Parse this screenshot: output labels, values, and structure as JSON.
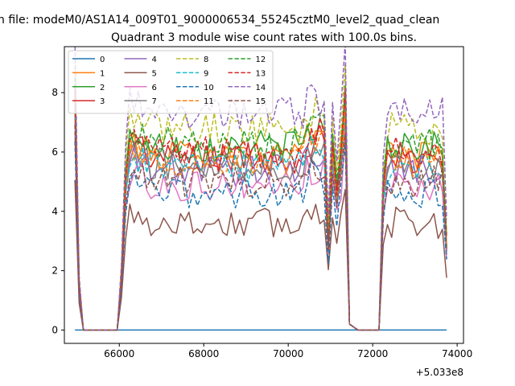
{
  "figure": {
    "suptitle": "n file: modeM0/AS1A14_009T01_9000006534_55245cztM0_level2_quad_clean",
    "title": "Quadrant 3 module wise count rates with 100.0s bins."
  },
  "chart_data": {
    "type": "line",
    "title": "Quadrant 3 module wise count rates with 100.0s bins.",
    "xlabel": "",
    "ylabel": "",
    "x_offset_label": "+5.033e8",
    "xlim": [
      64700,
      74150
    ],
    "ylim": [
      -0.45,
      9.55
    ],
    "x_ticks": [
      66000,
      68000,
      70000,
      72000,
      74000
    ],
    "x_tick_labels": [
      "66000",
      "68000",
      "70000",
      "72000",
      "74000"
    ],
    "y_ticks": [
      0,
      2,
      4,
      6,
      8
    ],
    "y_tick_labels": [
      "0",
      "2",
      "4",
      "6",
      "8"
    ],
    "grid": false,
    "legend_placement": "top-left",
    "legend_columns": 4,
    "segments": [
      {
        "x_start": 64950,
        "x_end": 65150,
        "bins": 3,
        "gap_after": true
      },
      {
        "x_start": 66050,
        "x_end": 71450,
        "bins": 55,
        "gap_after": true
      },
      {
        "x_start": 72250,
        "x_end": 73750,
        "bins": 16,
        "gap_after": false
      }
    ],
    "zero_baseline_series": "0",
    "series": [
      {
        "name": "0",
        "color": "#1f77b4",
        "dash": "solid",
        "level": 0.0
      },
      {
        "name": "1",
        "color": "#ff7f0e",
        "dash": "solid",
        "level": 5.9
      },
      {
        "name": "2",
        "color": "#2ca02c",
        "dash": "solid",
        "level": 6.2
      },
      {
        "name": "3",
        "color": "#d62728",
        "dash": "solid",
        "level": 5.8
      },
      {
        "name": "4",
        "color": "#9467bd",
        "dash": "solid",
        "level": 5.4
      },
      {
        "name": "5",
        "color": "#8c564b",
        "dash": "solid",
        "level": 3.6
      },
      {
        "name": "6",
        "color": "#e377c2",
        "dash": "solid",
        "level": 4.9
      },
      {
        "name": "7",
        "color": "#7f7f7f",
        "dash": "solid",
        "level": 5.6
      },
      {
        "name": "8",
        "color": "#bcbd22",
        "dash": "dashed",
        "level": 6.8
      },
      {
        "name": "9",
        "color": "#17becf",
        "dash": "dashed",
        "level": 5.5
      },
      {
        "name": "10",
        "color": "#1f77b4",
        "dash": "dashed",
        "level": 4.6
      },
      {
        "name": "11",
        "color": "#ff7f0e",
        "dash": "dashed",
        "level": 5.7
      },
      {
        "name": "12",
        "color": "#2ca02c",
        "dash": "dashed",
        "level": 6.3
      },
      {
        "name": "13",
        "color": "#d62728",
        "dash": "dashed",
        "level": 6.0
      },
      {
        "name": "14",
        "color": "#9467bd",
        "dash": "dashed",
        "level": 7.3
      },
      {
        "name": "15",
        "color": "#8c564b",
        "dash": "dashed",
        "level": 5.0
      }
    ]
  }
}
